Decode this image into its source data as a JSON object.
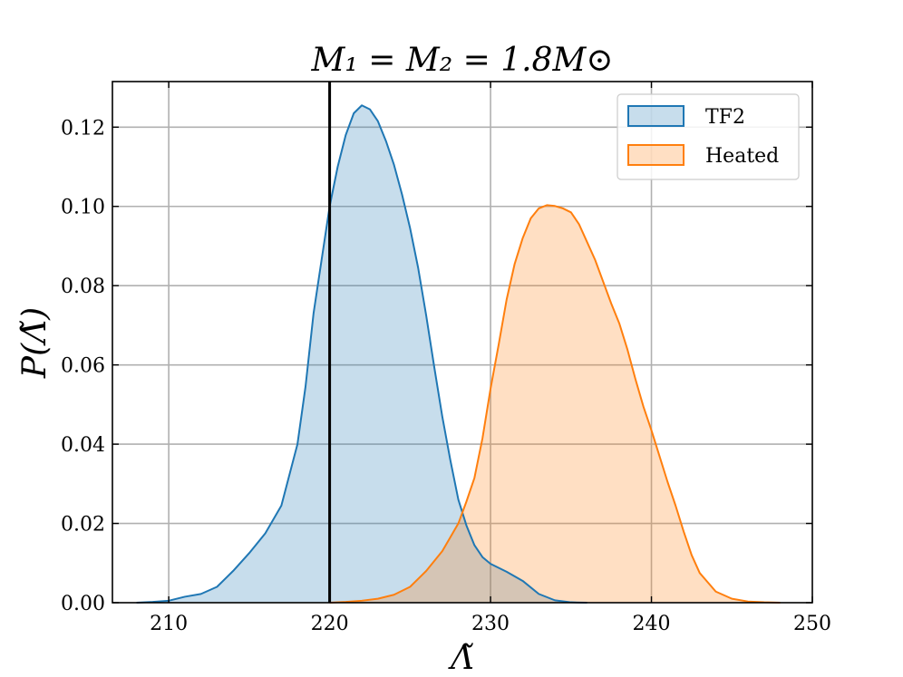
{
  "chart_data": {
    "type": "area",
    "title": "M₁ = M₂ = 1.8M⊙",
    "xlabel": "Λ̃",
    "ylabel": "P(Λ̃)",
    "xlim": [
      206.5,
      250
    ],
    "ylim": [
      0,
      0.1315
    ],
    "xticks": [
      210,
      220,
      230,
      240,
      250
    ],
    "yticks": [
      0.0,
      0.02,
      0.04,
      0.06,
      0.08,
      0.1,
      0.12
    ],
    "xtick_labels": [
      "210",
      "220",
      "230",
      "240",
      "250"
    ],
    "ytick_labels": [
      "0.00",
      "0.02",
      "0.04",
      "0.06",
      "0.08",
      "0.10",
      "0.12"
    ],
    "grid": true,
    "legend_position": "top-right",
    "reference_line_x": 220,
    "series": [
      {
        "name": "TF2",
        "color": "#1f77b4",
        "x": [
          208,
          209,
          210,
          211,
          212,
          213,
          214,
          215,
          216,
          217,
          218,
          218.5,
          219,
          219.5,
          220,
          220.5,
          221,
          221.5,
          222,
          222.5,
          223,
          223.5,
          224,
          224.5,
          225,
          225.5,
          226,
          226.5,
          227,
          227.5,
          228,
          228.5,
          229,
          229.5,
          230,
          230.5,
          231,
          232,
          233,
          234,
          235,
          236
        ],
        "y": [
          0.0,
          0.0002,
          0.0005,
          0.0015,
          0.0022,
          0.004,
          0.008,
          0.0125,
          0.0175,
          0.0245,
          0.04,
          0.0545,
          0.073,
          0.0865,
          0.1,
          0.11,
          0.118,
          0.1235,
          0.1255,
          0.1245,
          0.1215,
          0.1165,
          0.1105,
          0.103,
          0.0945,
          0.0845,
          0.0725,
          0.0595,
          0.047,
          0.036,
          0.026,
          0.0195,
          0.0145,
          0.0115,
          0.0098,
          0.0088,
          0.0078,
          0.0055,
          0.0022,
          0.0006,
          0.0001,
          0.0
        ]
      },
      {
        "name": "Heated",
        "color": "#ff7f0e",
        "x": [
          220,
          221,
          222,
          223,
          224,
          225,
          226,
          227,
          227.5,
          228,
          228.5,
          229,
          229.5,
          230,
          230.5,
          231,
          231.5,
          232,
          232.5,
          233,
          233.5,
          234,
          234.5,
          235,
          235.5,
          236,
          236.5,
          237,
          237.5,
          238,
          238.5,
          239,
          239.5,
          240,
          240.5,
          241,
          241.5,
          242,
          242.5,
          243,
          244,
          245,
          246,
          247,
          248
        ],
        "y": [
          0.0,
          0.0002,
          0.0005,
          0.001,
          0.002,
          0.004,
          0.008,
          0.013,
          0.0165,
          0.02,
          0.0255,
          0.0315,
          0.0415,
          0.054,
          0.065,
          0.0765,
          0.0855,
          0.092,
          0.097,
          0.0995,
          0.1003,
          0.1001,
          0.0995,
          0.0985,
          0.0955,
          0.091,
          0.0865,
          0.081,
          0.0755,
          0.0705,
          0.064,
          0.0565,
          0.0495,
          0.0435,
          0.037,
          0.0305,
          0.0245,
          0.018,
          0.012,
          0.0075,
          0.0028,
          0.001,
          0.0003,
          0.0001,
          0.0
        ]
      }
    ]
  }
}
